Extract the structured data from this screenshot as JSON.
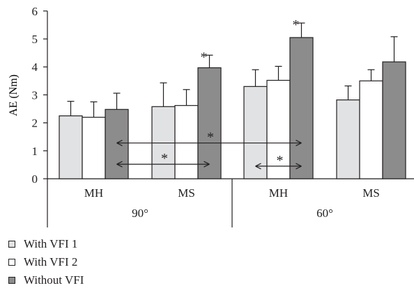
{
  "chart_data": {
    "type": "bar",
    "ylabel": "AE (Nm)",
    "ylim": [
      0,
      6
    ],
    "yticks": [
      "0",
      "1",
      "2",
      "3",
      "4",
      "5",
      "6"
    ],
    "categories": [
      "MH",
      "MS",
      "MH",
      "MS"
    ],
    "groups": [
      {
        "label": "90°",
        "categories": [
          0,
          1
        ]
      },
      {
        "label": "60°",
        "categories": [
          2,
          3
        ]
      }
    ],
    "series": [
      {
        "name": "With VFI 1",
        "color": "#e1e2e3",
        "values": [
          2.25,
          2.58,
          3.3,
          2.82
        ],
        "errors": [
          0.52,
          0.85,
          0.6,
          0.5
        ]
      },
      {
        "name": "With VFI 2",
        "color": "#ffffff",
        "values": [
          2.2,
          2.62,
          3.52,
          3.5
        ],
        "errors": [
          0.55,
          0.57,
          0.5,
          0.4
        ]
      },
      {
        "name": "Without VFI",
        "color": "#8c8c8c",
        "values": [
          2.48,
          3.97,
          5.05,
          4.18
        ],
        "errors": [
          0.58,
          0.45,
          0.52,
          0.9
        ]
      }
    ],
    "star_marks": [
      {
        "category": 1,
        "series": 2,
        "label": "*"
      },
      {
        "category": 2,
        "series": 2,
        "label": "*"
      }
    ],
    "comparisons": [
      {
        "from_category": 0,
        "from_series": 2,
        "to_category": 2,
        "to_series": 2,
        "y": 1.28,
        "label": "*"
      },
      {
        "from_category": 0,
        "from_series": 2,
        "to_category": 1,
        "to_series": 2,
        "y": 0.52,
        "label": "*"
      },
      {
        "from_category": 2,
        "from_series": 0,
        "to_category": 2,
        "to_series": 2,
        "y": 0.45,
        "label": "*"
      }
    ],
    "legend_position": "bottom-left",
    "grid": false
  }
}
